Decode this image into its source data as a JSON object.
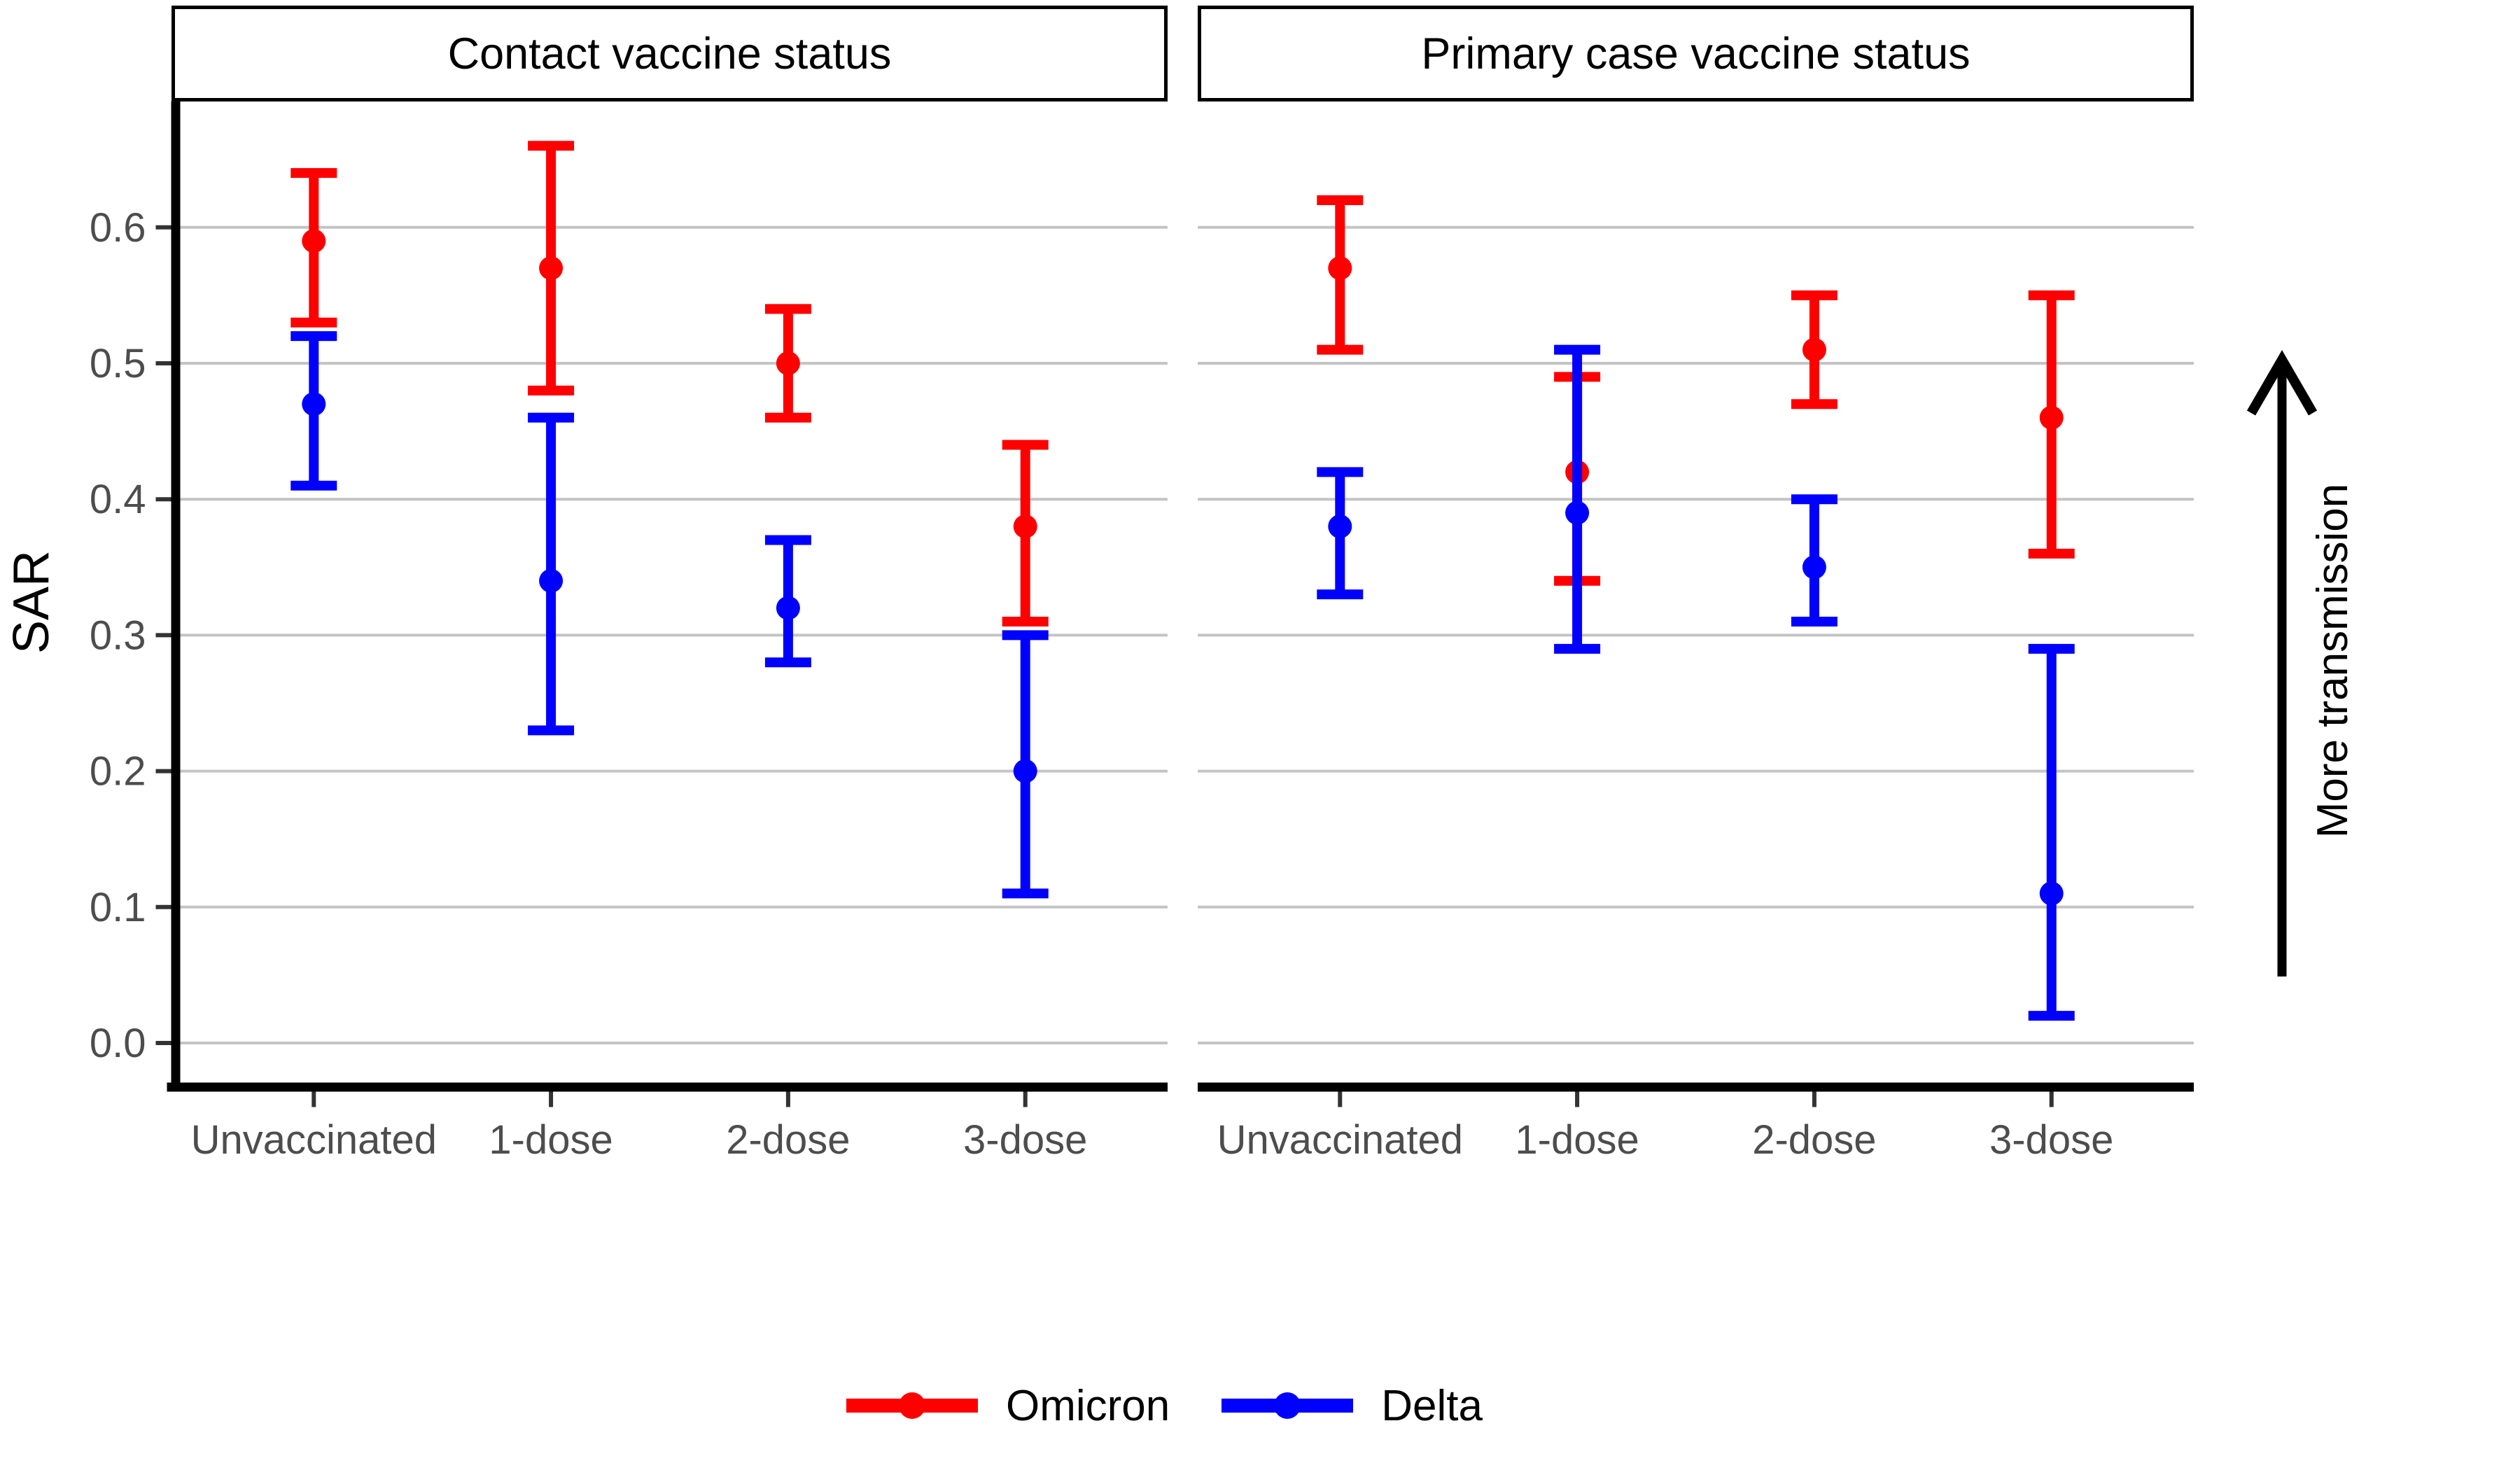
{
  "chart_data": {
    "type": "scatter",
    "subtype": "dot-and-errorbar, faceted",
    "ylabel": "SAR",
    "ylim": [
      0.0,
      0.69
    ],
    "y_ticks": [
      "0.0",
      "0.1",
      "0.2",
      "0.3",
      "0.4",
      "0.5",
      "0.6"
    ],
    "y_tick_values": [
      0.0,
      0.1,
      0.2,
      0.3,
      0.4,
      0.5,
      0.6
    ],
    "grid": "horizontal gridlines on",
    "legend_position": "bottom center",
    "categories": [
      "Unvaccinated",
      "1-dose",
      "2-dose",
      "3-dose"
    ],
    "panels": [
      {
        "title": "Contact vaccine status",
        "series": [
          {
            "name": "Omicron",
            "color": "#FF0000",
            "points": [
              {
                "category": "Unvaccinated",
                "y": 0.59,
                "lo": 0.53,
                "hi": 0.64
              },
              {
                "category": "1-dose",
                "y": 0.57,
                "lo": 0.48,
                "hi": 0.66
              },
              {
                "category": "2-dose",
                "y": 0.5,
                "lo": 0.46,
                "hi": 0.54
              },
              {
                "category": "3-dose",
                "y": 0.38,
                "lo": 0.31,
                "hi": 0.44
              }
            ]
          },
          {
            "name": "Delta",
            "color": "#0000FF",
            "points": [
              {
                "category": "Unvaccinated",
                "y": 0.47,
                "lo": 0.41,
                "hi": 0.52
              },
              {
                "category": "1-dose",
                "y": 0.34,
                "lo": 0.23,
                "hi": 0.46
              },
              {
                "category": "2-dose",
                "y": 0.32,
                "lo": 0.28,
                "hi": 0.37
              },
              {
                "category": "3-dose",
                "y": 0.2,
                "lo": 0.11,
                "hi": 0.3
              }
            ]
          }
        ]
      },
      {
        "title": "Primary case vaccine status",
        "series": [
          {
            "name": "Omicron",
            "color": "#FF0000",
            "points": [
              {
                "category": "Unvaccinated",
                "y": 0.57,
                "lo": 0.51,
                "hi": 0.62
              },
              {
                "category": "1-dose",
                "y": 0.42,
                "lo": 0.34,
                "hi": 0.49
              },
              {
                "category": "2-dose",
                "y": 0.51,
                "lo": 0.47,
                "hi": 0.55
              },
              {
                "category": "3-dose",
                "y": 0.46,
                "lo": 0.36,
                "hi": 0.55
              }
            ]
          },
          {
            "name": "Delta",
            "color": "#0000FF",
            "points": [
              {
                "category": "Unvaccinated",
                "y": 0.38,
                "lo": 0.33,
                "hi": 0.42
              },
              {
                "category": "1-dose",
                "y": 0.39,
                "lo": 0.29,
                "hi": 0.51
              },
              {
                "category": "2-dose",
                "y": 0.35,
                "lo": 0.31,
                "hi": 0.4
              },
              {
                "category": "3-dose",
                "y": 0.11,
                "lo": 0.02,
                "hi": 0.29
              }
            ]
          }
        ]
      }
    ],
    "legend": {
      "entries": [
        {
          "label": "Omicron",
          "color": "#FF0000"
        },
        {
          "label": "Delta",
          "color": "#0000FF"
        }
      ]
    },
    "annotation": {
      "text": "More transmission",
      "arrow_direction": "up"
    }
  },
  "colors": {
    "background": "#FFFFFF",
    "gridline": "#C4C4C4",
    "axis_line": "#000000",
    "tick_mark": "#333333",
    "tick_label": "#4D4D4D",
    "strip_border": "#000000",
    "strip_text": "#000000"
  }
}
